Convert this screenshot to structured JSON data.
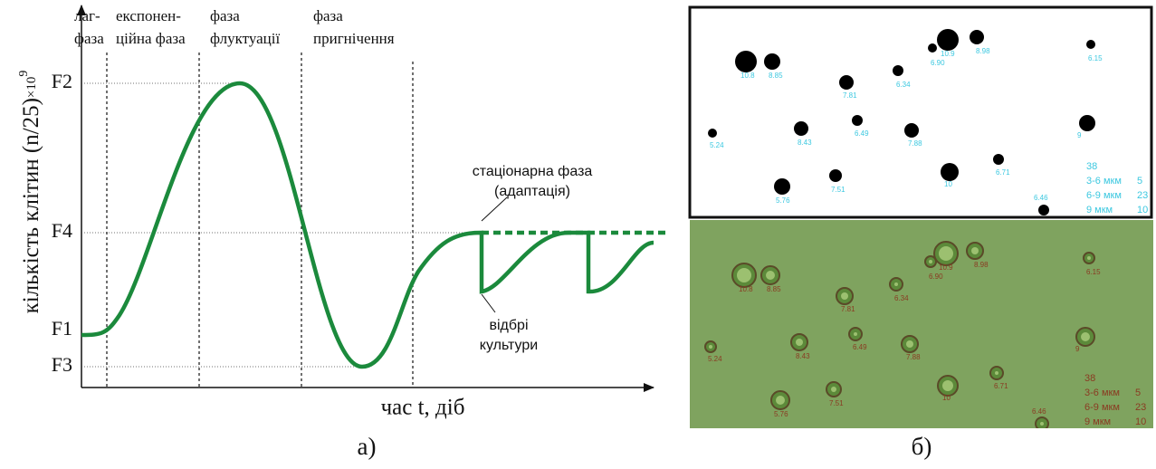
{
  "left_panel": {
    "y_axis": {
      "label": "кількість клітин (n/25)",
      "multiplier": "×10",
      "exponent": "9"
    },
    "phases": [
      {
        "lines": [
          "лаг-",
          "фаза"
        ]
      },
      {
        "lines": [
          "експонен-",
          "ційна фаза"
        ]
      },
      {
        "lines": [
          "фаза",
          "флуктуації"
        ]
      },
      {
        "lines": [
          "фаза",
          "пригнічення"
        ]
      }
    ],
    "levels": [
      "F2",
      "F4",
      "F1",
      "F3"
    ],
    "x_axis_label": "час t, діб",
    "annotations": {
      "stationary": [
        "стаціонарна фаза",
        "(адаптація)"
      ],
      "sampling": [
        "відбрі",
        "культури"
      ]
    },
    "caption": "а)"
  },
  "right_panel": {
    "cells": [
      {
        "label": "10.8"
      },
      {
        "label": "8.85"
      },
      {
        "label": "6.90"
      },
      {
        "label": "10.9"
      },
      {
        "label": "8.98"
      },
      {
        "label": "6.15"
      },
      {
        "label": "6.34"
      },
      {
        "label": "7.81"
      },
      {
        "label": "5.24"
      },
      {
        "label": "8.43"
      },
      {
        "label": "6.49"
      },
      {
        "label": "7.88"
      },
      {
        "label": "9"
      },
      {
        "label": "6.71"
      },
      {
        "label": "10"
      },
      {
        "label": "5.76"
      },
      {
        "label": "7.51"
      },
      {
        "label": "6.46"
      }
    ],
    "legend": {
      "total": "38",
      "rows": [
        {
          "range": "3-6 мкм",
          "count": "5"
        },
        {
          "range": "6-9 мкм",
          "count": "23"
        },
        {
          "range": "9 мкм",
          "count": "10"
        }
      ]
    },
    "caption": "б)"
  }
}
